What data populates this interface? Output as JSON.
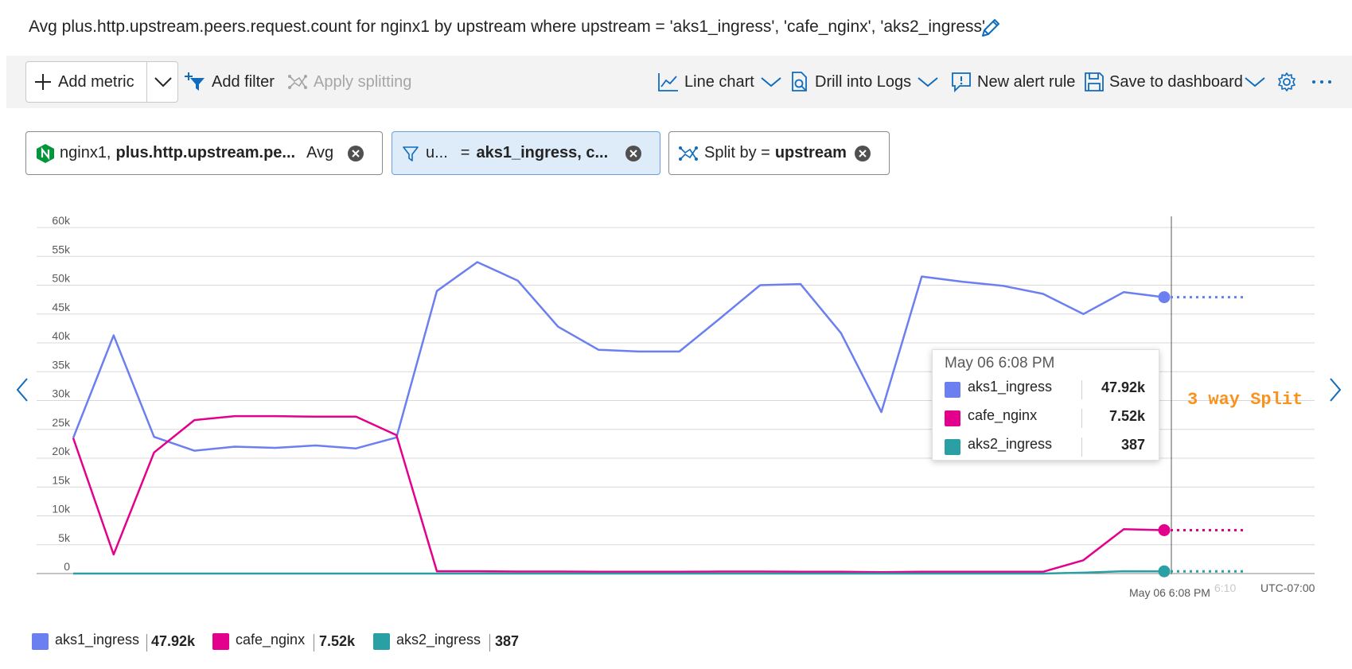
{
  "header": {
    "title": "Avg plus.http.upstream.peers.request.count for nginx1 by upstream where upstream = 'aks1_ingress', 'cafe_nginx', 'aks2_ingress'",
    "edit_icon": "pencil-icon"
  },
  "toolbar": {
    "add_metric_label": "Add metric",
    "add_filter_label": "Add filter",
    "apply_splitting_label": "Apply splitting",
    "chart_type_label": "Line chart",
    "drill_logs_label": "Drill into Logs",
    "new_alert_label": "New alert rule",
    "save_dashboard_label": "Save to dashboard",
    "settings_icon": "gear-icon",
    "more_icon": "more-icon"
  },
  "pills": {
    "metric": {
      "resource": "nginx1,",
      "metric": "plus.http.upstream.pe...",
      "aggregation": "Avg"
    },
    "filter": {
      "property": "u...",
      "operator": "=",
      "values": "aks1_ingress, c..."
    },
    "split": {
      "prefix": "Split by =",
      "dimension": "upstream"
    }
  },
  "tooltip": {
    "time": "May 06 6:08 PM",
    "rows": [
      {
        "name": "aks1_ingress",
        "value": "47.92k"
      },
      {
        "name": "cafe_nginx",
        "value": "7.52k"
      },
      {
        "name": "aks2_ingress",
        "value": "387"
      }
    ]
  },
  "annotation": "3 way Split",
  "axis": {
    "cursor_time": "May 06 6:08 PM",
    "faint_tick": "6:10",
    "timezone": "UTC-07:00"
  },
  "legend": [
    {
      "name": "aks1_ingress",
      "value": "47.92k"
    },
    {
      "name": "cafe_nginx",
      "value": "7.52k"
    },
    {
      "name": "aks2_ingress",
      "value": "387"
    }
  ],
  "chart_data": {
    "type": "line",
    "title": "Avg plus.http.upstream.peers.request.count for nginx1 by upstream where upstream = 'aks1_ingress', 'cafe_nginx', 'aks2_ingress'",
    "ylim": [
      0,
      60000
    ],
    "yticks": [
      0,
      5000,
      10000,
      15000,
      20000,
      25000,
      30000,
      35000,
      40000,
      45000,
      50000,
      55000,
      60000
    ],
    "ytick_labels": [
      "0",
      "5k",
      "10k",
      "15k",
      "20k",
      "25k",
      "30k",
      "35k",
      "40k",
      "45k",
      "50k",
      "55k",
      "60k"
    ],
    "grid": true,
    "legend_position": "bottom-left",
    "series": [
      {
        "name": "aks1_ingress",
        "color": "#6b7ff0",
        "values": [
          23500,
          41300,
          23700,
          21300,
          22000,
          21800,
          22200,
          21700,
          23600,
          49000,
          54000,
          50800,
          42800,
          38800,
          38500,
          38500,
          44200,
          50000,
          50200,
          41700,
          28000,
          51500,
          50600,
          49900,
          48500,
          45000,
          48800,
          47920
        ]
      },
      {
        "name": "cafe_nginx",
        "color": "#e3008c",
        "values": [
          23500,
          3300,
          21000,
          26600,
          27300,
          27300,
          27200,
          27200,
          24000,
          400,
          400,
          350,
          350,
          300,
          300,
          300,
          350,
          350,
          300,
          300,
          250,
          300,
          300,
          300,
          300,
          2300,
          7700,
          7520
        ]
      },
      {
        "name": "aks2_ingress",
        "color": "#2aa0a4",
        "values": [
          0,
          0,
          0,
          0,
          0,
          0,
          0,
          0,
          0,
          0,
          0,
          0,
          0,
          0,
          0,
          0,
          0,
          0,
          0,
          0,
          0,
          0,
          0,
          0,
          0,
          150,
          400,
          387
        ]
      }
    ]
  }
}
